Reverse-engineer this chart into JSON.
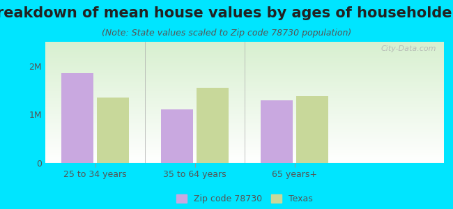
{
  "title": "Breakdown of mean house values by ages of householders",
  "subtitle": "(Note: State values scaled to Zip code 78730 population)",
  "categories": [
    "25 to 34 years",
    "35 to 64 years",
    "65 years+"
  ],
  "zip_values": [
    1850000,
    1100000,
    1300000
  ],
  "texas_values": [
    1350000,
    1550000,
    1380000
  ],
  "zip_color": "#c9a8e0",
  "texas_color": "#c8d89a",
  "background_outer": "#00e5ff",
  "background_inner_top": "#d8f0d0",
  "background_inner_bottom": "#ffffff",
  "ylim": [
    0,
    2500000
  ],
  "yticks": [
    0,
    1000000,
    2000000
  ],
  "ytick_labels": [
    "0",
    "1M",
    "2M"
  ],
  "legend_zip_label": "Zip code 78730",
  "legend_texas_label": "Texas",
  "title_fontsize": 15,
  "subtitle_fontsize": 9,
  "watermark": "City-Data.com"
}
